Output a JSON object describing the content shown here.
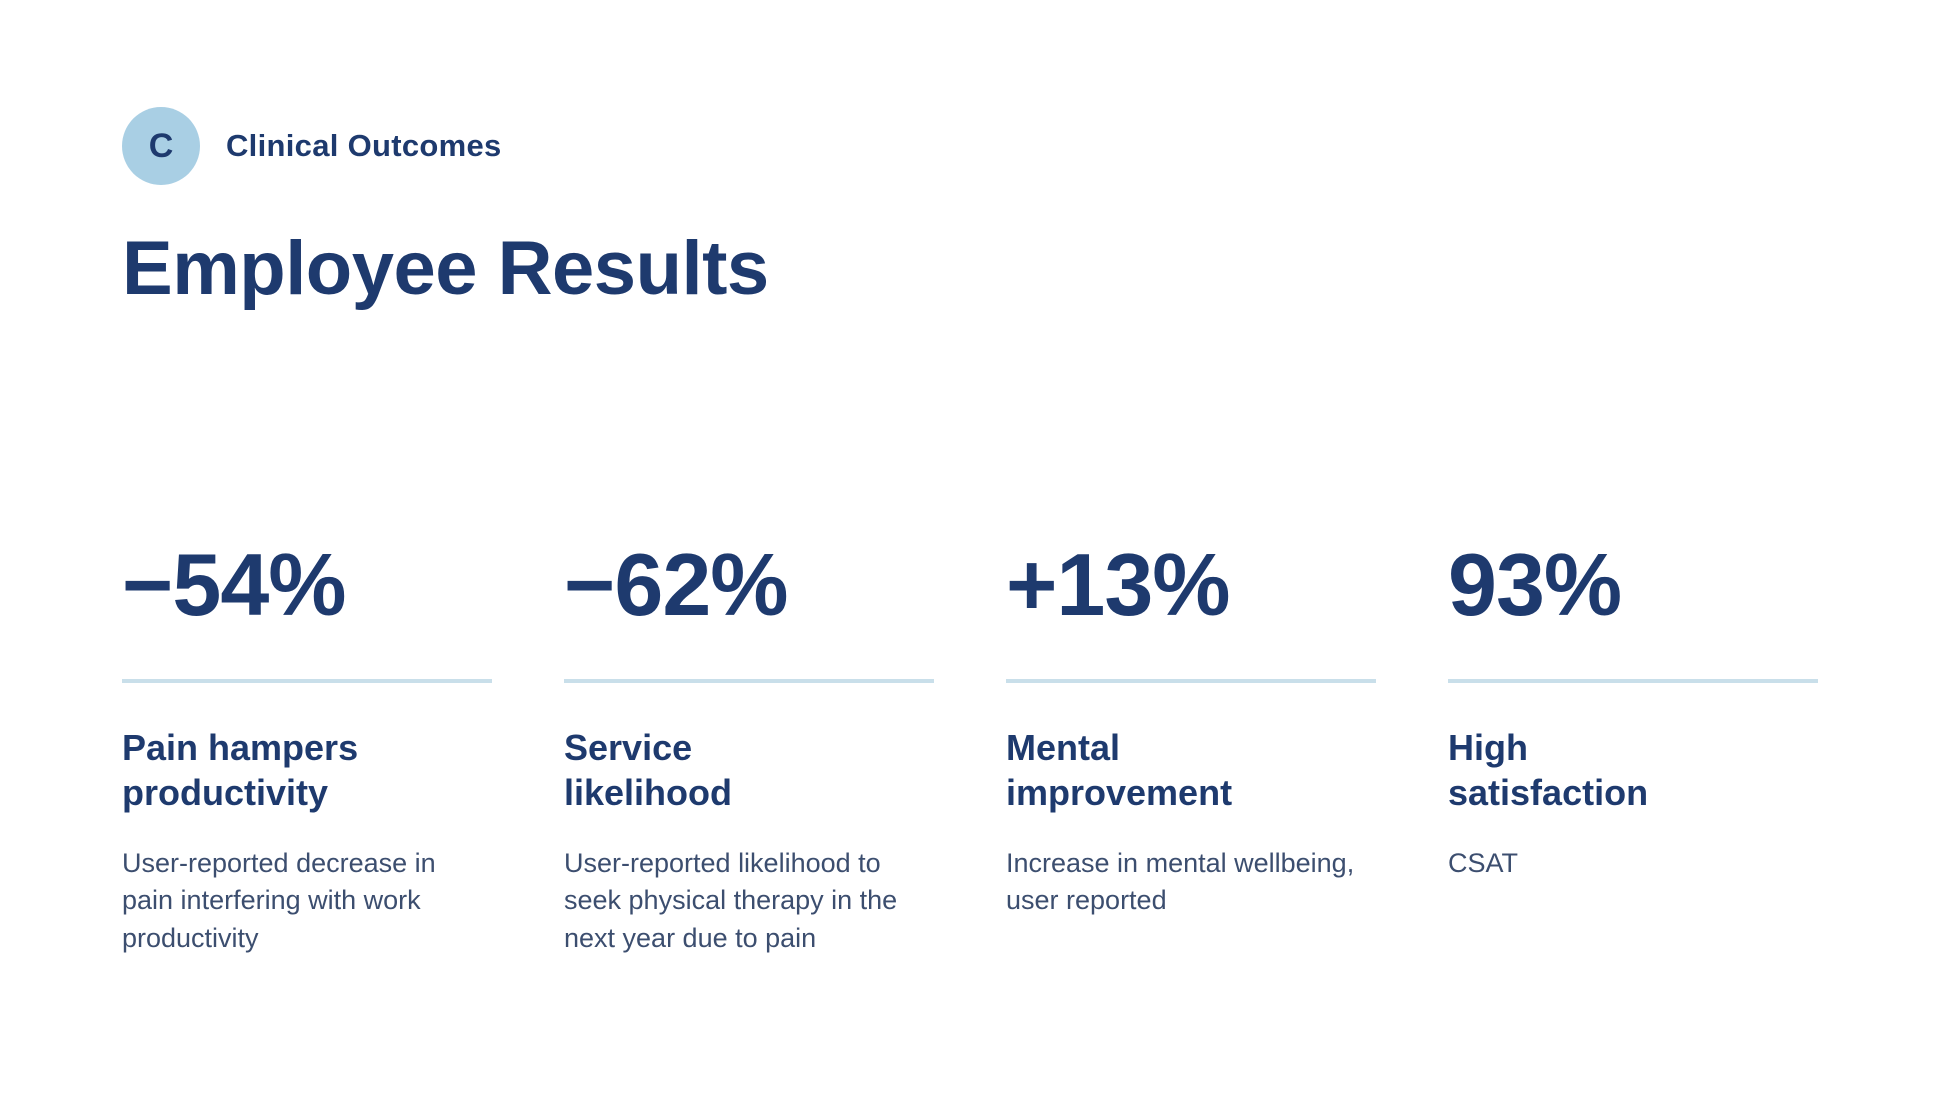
{
  "page": {
    "background": "#ffffff"
  },
  "colors": {
    "navy": "#1e3a6e",
    "body_text": "#3c4e6f",
    "badge_bg": "#a9cfe4",
    "divider": "#c9dfea"
  },
  "header": {
    "badge_letter": "C",
    "label": "Clinical Outcomes",
    "title": "Employee Results"
  },
  "stats": [
    {
      "value": "−54%",
      "heading": "Pain hampers\nproductivity",
      "description": "User-reported decrease in pain interfering with work productivity"
    },
    {
      "value": "−62%",
      "heading": "Service\nlikelihood",
      "description": "User-reported likelihood to seek physical therapy in the next year due to pain"
    },
    {
      "value": "+13%",
      "heading": "Mental\nimprovement",
      "description": "Increase in mental wellbeing, user reported"
    },
    {
      "value": "93%",
      "heading": "High\nsatisfaction",
      "description": "CSAT"
    }
  ]
}
